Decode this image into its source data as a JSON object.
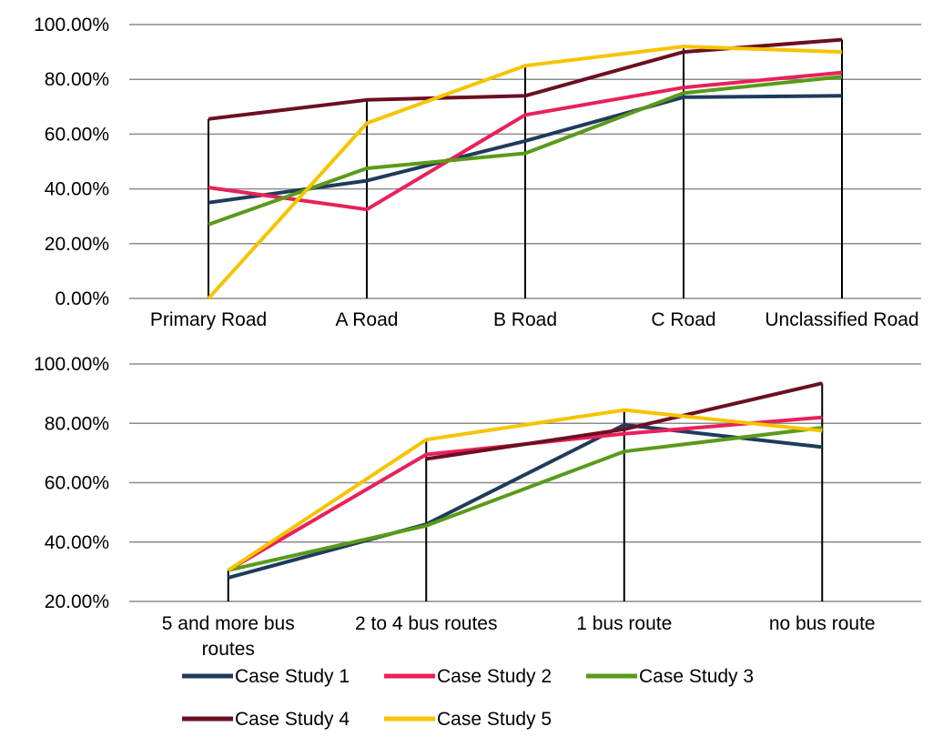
{
  "chart_data": [
    {
      "type": "line",
      "categories": [
        "Primary Road",
        "A Road",
        "B Road",
        "C Road",
        "Unclassified Road"
      ],
      "y_ticks": [
        "0.00%",
        "20.00%",
        "40.00%",
        "60.00%",
        "80.00%",
        "100.00%"
      ],
      "ylim": [
        0,
        1
      ],
      "grid": true,
      "series": [
        {
          "name": "Case Study 1",
          "color": "#1f3b5c",
          "values": [
            0.35,
            0.43,
            0.575,
            0.735,
            0.74
          ]
        },
        {
          "name": "Case Study 2",
          "color": "#e8215a",
          "values": [
            0.405,
            0.325,
            0.67,
            0.77,
            0.825
          ]
        },
        {
          "name": "Case Study 3",
          "color": "#5a9a1a",
          "values": [
            0.27,
            0.475,
            0.53,
            0.75,
            0.81
          ]
        },
        {
          "name": "Case Study 4",
          "color": "#6b0f22",
          "values": [
            0.655,
            0.725,
            0.74,
            0.9,
            0.945
          ]
        },
        {
          "name": "Case Study 5",
          "color": "#f5c400",
          "values": [
            0.0,
            0.64,
            0.85,
            0.92,
            0.9
          ]
        }
      ]
    },
    {
      "type": "line",
      "categories": [
        "5 and more bus routes",
        "2 to 4 bus routes",
        "1 bus route",
        "no bus route"
      ],
      "y_ticks": [
        "20.00%",
        "40.00%",
        "60.00%",
        "80.00%",
        "100.00%"
      ],
      "ylim": [
        0.2,
        1
      ],
      "grid": true,
      "series": [
        {
          "name": "Case Study 1",
          "color": "#1f3b5c",
          "values": [
            0.28,
            0.46,
            0.795,
            0.72
          ]
        },
        {
          "name": "Case Study 2",
          "color": "#e8215a",
          "values": [
            0.305,
            0.695,
            0.765,
            0.82
          ]
        },
        {
          "name": "Case Study 3",
          "color": "#5a9a1a",
          "values": [
            0.305,
            0.455,
            0.705,
            0.785
          ]
        },
        {
          "name": "Case Study 4",
          "color": "#6b0f22",
          "values": [
            null,
            0.68,
            0.78,
            0.935
          ]
        },
        {
          "name": "Case Study 5",
          "color": "#f5c400",
          "values": [
            0.305,
            0.745,
            0.845,
            0.775
          ]
        }
      ]
    }
  ],
  "legend": {
    "placement": "bottom",
    "rows": [
      [
        "Case Study 1",
        "Case Study 2",
        "Case Study 3"
      ],
      [
        "Case Study 4",
        "Case Study 5"
      ]
    ]
  }
}
